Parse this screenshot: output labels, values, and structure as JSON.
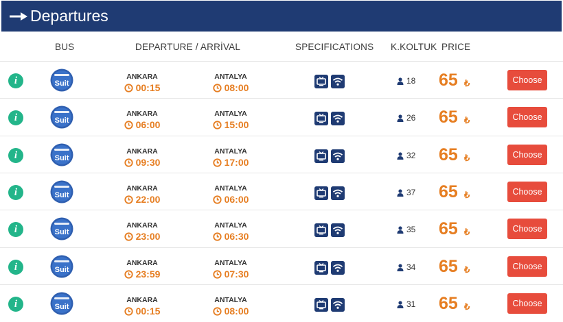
{
  "header": {
    "title": "Departures"
  },
  "columns": {
    "bus": "BUS",
    "departure_arrival": "DEPARTURE / ARRİVAL",
    "specifications": "SPECIFICATIONS",
    "seats": "K.KOLTUK",
    "price": "PRICE"
  },
  "colors": {
    "header_bg": "#1f3b73",
    "accent": "#e67e22",
    "button": "#e74c3c",
    "info": "#23b58a"
  },
  "icons": [
    "info-icon",
    "bus-company-logo",
    "clock-icon",
    "tv-icon",
    "wifi-icon",
    "seat-person-icon"
  ],
  "bus_brand": "Suit",
  "rows": [
    {
      "from": "ANKARA",
      "dep": "00:15",
      "to": "ANTALYA",
      "arr": "08:00",
      "seats": "18",
      "price": "65",
      "currency": "₺",
      "button": "Choose"
    },
    {
      "from": "ANKARA",
      "dep": "06:00",
      "to": "ANTALYA",
      "arr": "15:00",
      "seats": "26",
      "price": "65",
      "currency": "₺",
      "button": "Choose"
    },
    {
      "from": "ANKARA",
      "dep": "09:30",
      "to": "ANTALYA",
      "arr": "17:00",
      "seats": "32",
      "price": "65",
      "currency": "₺",
      "button": "Choose"
    },
    {
      "from": "ANKARA",
      "dep": "22:00",
      "to": "ANTALYA",
      "arr": "06:00",
      "seats": "37",
      "price": "65",
      "currency": "₺",
      "button": "Choose"
    },
    {
      "from": "ANKARA",
      "dep": "23:00",
      "to": "ANTALYA",
      "arr": "06:30",
      "seats": "35",
      "price": "65",
      "currency": "₺",
      "button": "Choose"
    },
    {
      "from": "ANKARA",
      "dep": "23:59",
      "to": "ANTALYA",
      "arr": "07:30",
      "seats": "34",
      "price": "65",
      "currency": "₺",
      "button": "Choose"
    },
    {
      "from": "ANKARA",
      "dep": "00:15",
      "to": "ANTALYA",
      "arr": "08:00",
      "seats": "31",
      "price": "65",
      "currency": "₺",
      "button": "Choose"
    }
  ]
}
